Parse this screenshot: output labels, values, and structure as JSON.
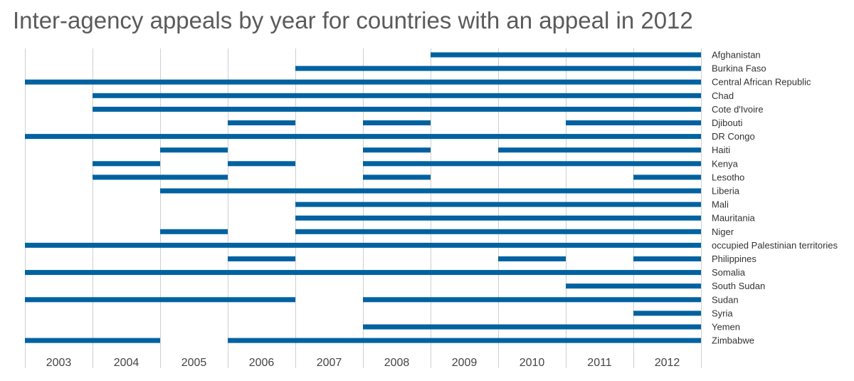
{
  "chart_data": {
    "type": "bar",
    "subtype": "timeline-gantt",
    "title": "Inter-agency appeals by year for countries with an appeal in 2012",
    "years": [
      "2003",
      "2004",
      "2005",
      "2006",
      "2007",
      "2008",
      "2009",
      "2010",
      "2011",
      "2012"
    ],
    "bar_color": "#0062a0",
    "grid_color": "#cfcfcf",
    "grid": true,
    "series": [
      {
        "name": "Afghanistan",
        "ranges": [
          [
            2009,
            2012
          ]
        ]
      },
      {
        "name": "Burkina Faso",
        "ranges": [
          [
            2007,
            2012
          ]
        ]
      },
      {
        "name": "Central African Republic",
        "ranges": [
          [
            2003,
            2012
          ]
        ]
      },
      {
        "name": "Chad",
        "ranges": [
          [
            2004,
            2012
          ]
        ]
      },
      {
        "name": "Cote d'Ivoire",
        "ranges": [
          [
            2004,
            2012
          ]
        ]
      },
      {
        "name": "Djibouti",
        "ranges": [
          [
            2006,
            2006
          ],
          [
            2008,
            2008
          ],
          [
            2011,
            2012
          ]
        ]
      },
      {
        "name": "DR Congo",
        "ranges": [
          [
            2003,
            2012
          ]
        ]
      },
      {
        "name": "Haiti",
        "ranges": [
          [
            2005,
            2005
          ],
          [
            2008,
            2008
          ],
          [
            2010,
            2012
          ]
        ]
      },
      {
        "name": "Kenya",
        "ranges": [
          [
            2004,
            2004
          ],
          [
            2006,
            2006
          ],
          [
            2008,
            2012
          ]
        ]
      },
      {
        "name": "Lesotho",
        "ranges": [
          [
            2004,
            2005
          ],
          [
            2008,
            2008
          ],
          [
            2012,
            2012
          ]
        ]
      },
      {
        "name": "Liberia",
        "ranges": [
          [
            2005,
            2012
          ]
        ]
      },
      {
        "name": "Mali",
        "ranges": [
          [
            2007,
            2012
          ]
        ]
      },
      {
        "name": "Mauritania",
        "ranges": [
          [
            2007,
            2012
          ]
        ]
      },
      {
        "name": "Niger",
        "ranges": [
          [
            2005,
            2005
          ],
          [
            2007,
            2012
          ]
        ]
      },
      {
        "name": "occupied Palestinian territories",
        "ranges": [
          [
            2003,
            2012
          ]
        ]
      },
      {
        "name": "Philippines",
        "ranges": [
          [
            2006,
            2006
          ],
          [
            2010,
            2010
          ],
          [
            2012,
            2012
          ]
        ]
      },
      {
        "name": "Somalia",
        "ranges": [
          [
            2003,
            2012
          ]
        ]
      },
      {
        "name": "South Sudan",
        "ranges": [
          [
            2011,
            2012
          ]
        ]
      },
      {
        "name": "Sudan",
        "ranges": [
          [
            2003,
            2006
          ],
          [
            2008,
            2012
          ]
        ]
      },
      {
        "name": "Syria",
        "ranges": [
          [
            2012,
            2012
          ]
        ]
      },
      {
        "name": "Yemen",
        "ranges": [
          [
            2008,
            2012
          ]
        ]
      },
      {
        "name": "Zimbabwe",
        "ranges": [
          [
            2003,
            2004
          ],
          [
            2006,
            2012
          ]
        ]
      }
    ]
  }
}
